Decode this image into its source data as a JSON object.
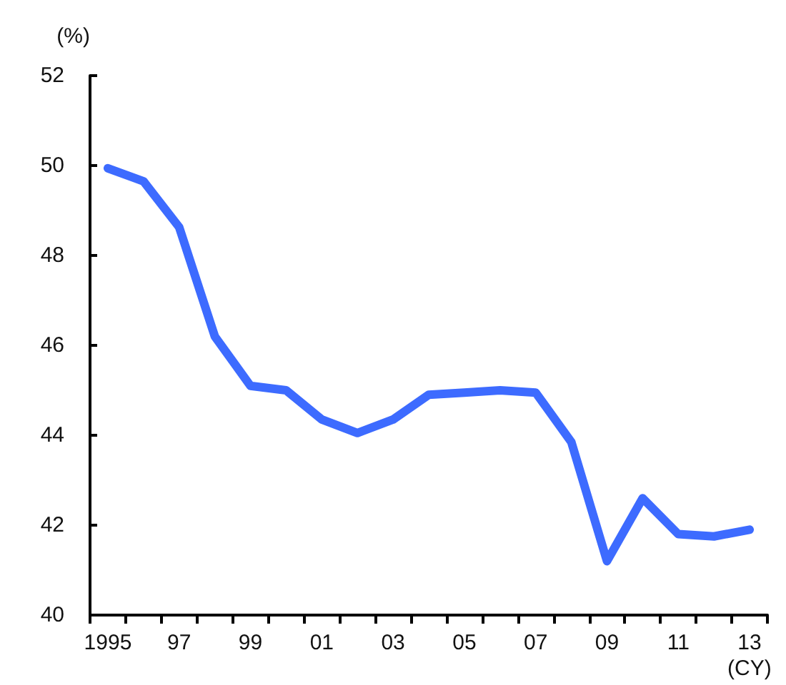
{
  "chart_data": {
    "type": "line",
    "xlabel": "(CY)",
    "ylabel": "(%)",
    "categories": [
      "1995",
      null,
      "97",
      null,
      "99",
      null,
      "01",
      null,
      "03",
      null,
      "05",
      null,
      "07",
      null,
      "09",
      null,
      "11",
      null,
      "13"
    ],
    "series": [
      {
        "color": "#3d6bff",
        "values": [
          49.94,
          49.65,
          48.63,
          46.2,
          45.1,
          45.0,
          44.35,
          44.05,
          44.35,
          44.9,
          44.95,
          45.0,
          44.95,
          43.85,
          41.2,
          42.6,
          41.8,
          41.75,
          41.9
        ]
      }
    ],
    "ylim": [
      40,
      52
    ],
    "yticks": [
      40,
      42,
      44,
      46,
      48,
      50,
      52
    ],
    "grid": false,
    "marker": "none",
    "line_style": "solid"
  }
}
